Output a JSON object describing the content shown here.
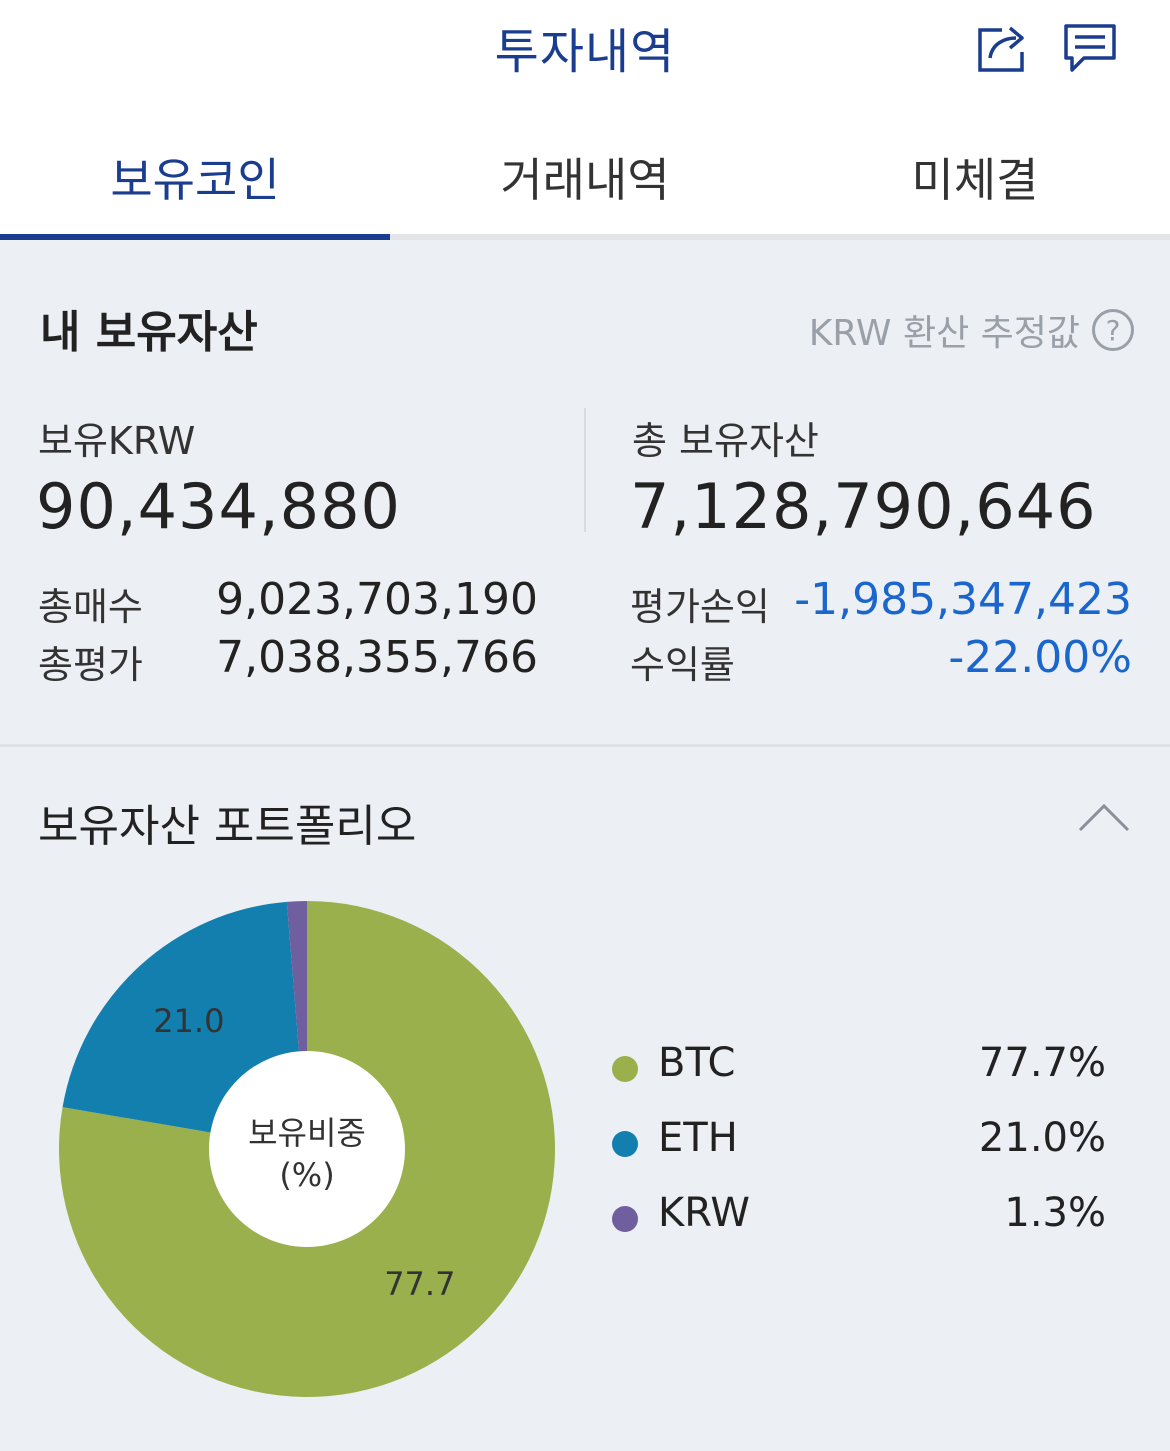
{
  "header": {
    "title": "투자내역",
    "share_icon": "share-icon",
    "chat_icon": "chat-icon"
  },
  "tabs": [
    {
      "label": "보유코인",
      "active": true
    },
    {
      "label": "거래내역",
      "active": false
    },
    {
      "label": "미체결",
      "active": false
    }
  ],
  "assets": {
    "title": "내 보유자산",
    "krw_note": "KRW 환산 추정값",
    "help_icon": "?",
    "held_krw_label": "보유KRW",
    "held_krw_value": "90,434,880",
    "total_assets_label": "총 보유자산",
    "total_assets_value": "7,128,790,646",
    "total_buy_label": "총매수",
    "total_buy_value": "9,023,703,190",
    "total_eval_label": "총평가",
    "total_eval_value": "7,038,355,766",
    "pnl_label": "평가손익",
    "pnl_value": "-1,985,347,423",
    "return_label": "수익률",
    "return_value": "-22.00%",
    "loss_color": "#1a66cc"
  },
  "portfolio": {
    "title": "보유자산 포트폴리오",
    "center_label_line1": "보유비중",
    "center_label_line2": "(%)",
    "legend": [
      {
        "name": "BTC",
        "value": "77.7%"
      },
      {
        "name": "ETH",
        "value": "21.0%"
      },
      {
        "name": "KRW",
        "value": "1.3%"
      }
    ]
  },
  "chart_data": {
    "type": "pie",
    "categories": [
      "BTC",
      "ETH",
      "KRW"
    ],
    "values": [
      77.7,
      21.0,
      1.3
    ],
    "data_labels": [
      "77.7",
      "21.0",
      ""
    ],
    "colors": [
      "#9ab04d",
      "#137fae",
      "#6f5f9e"
    ],
    "legend": "right"
  }
}
